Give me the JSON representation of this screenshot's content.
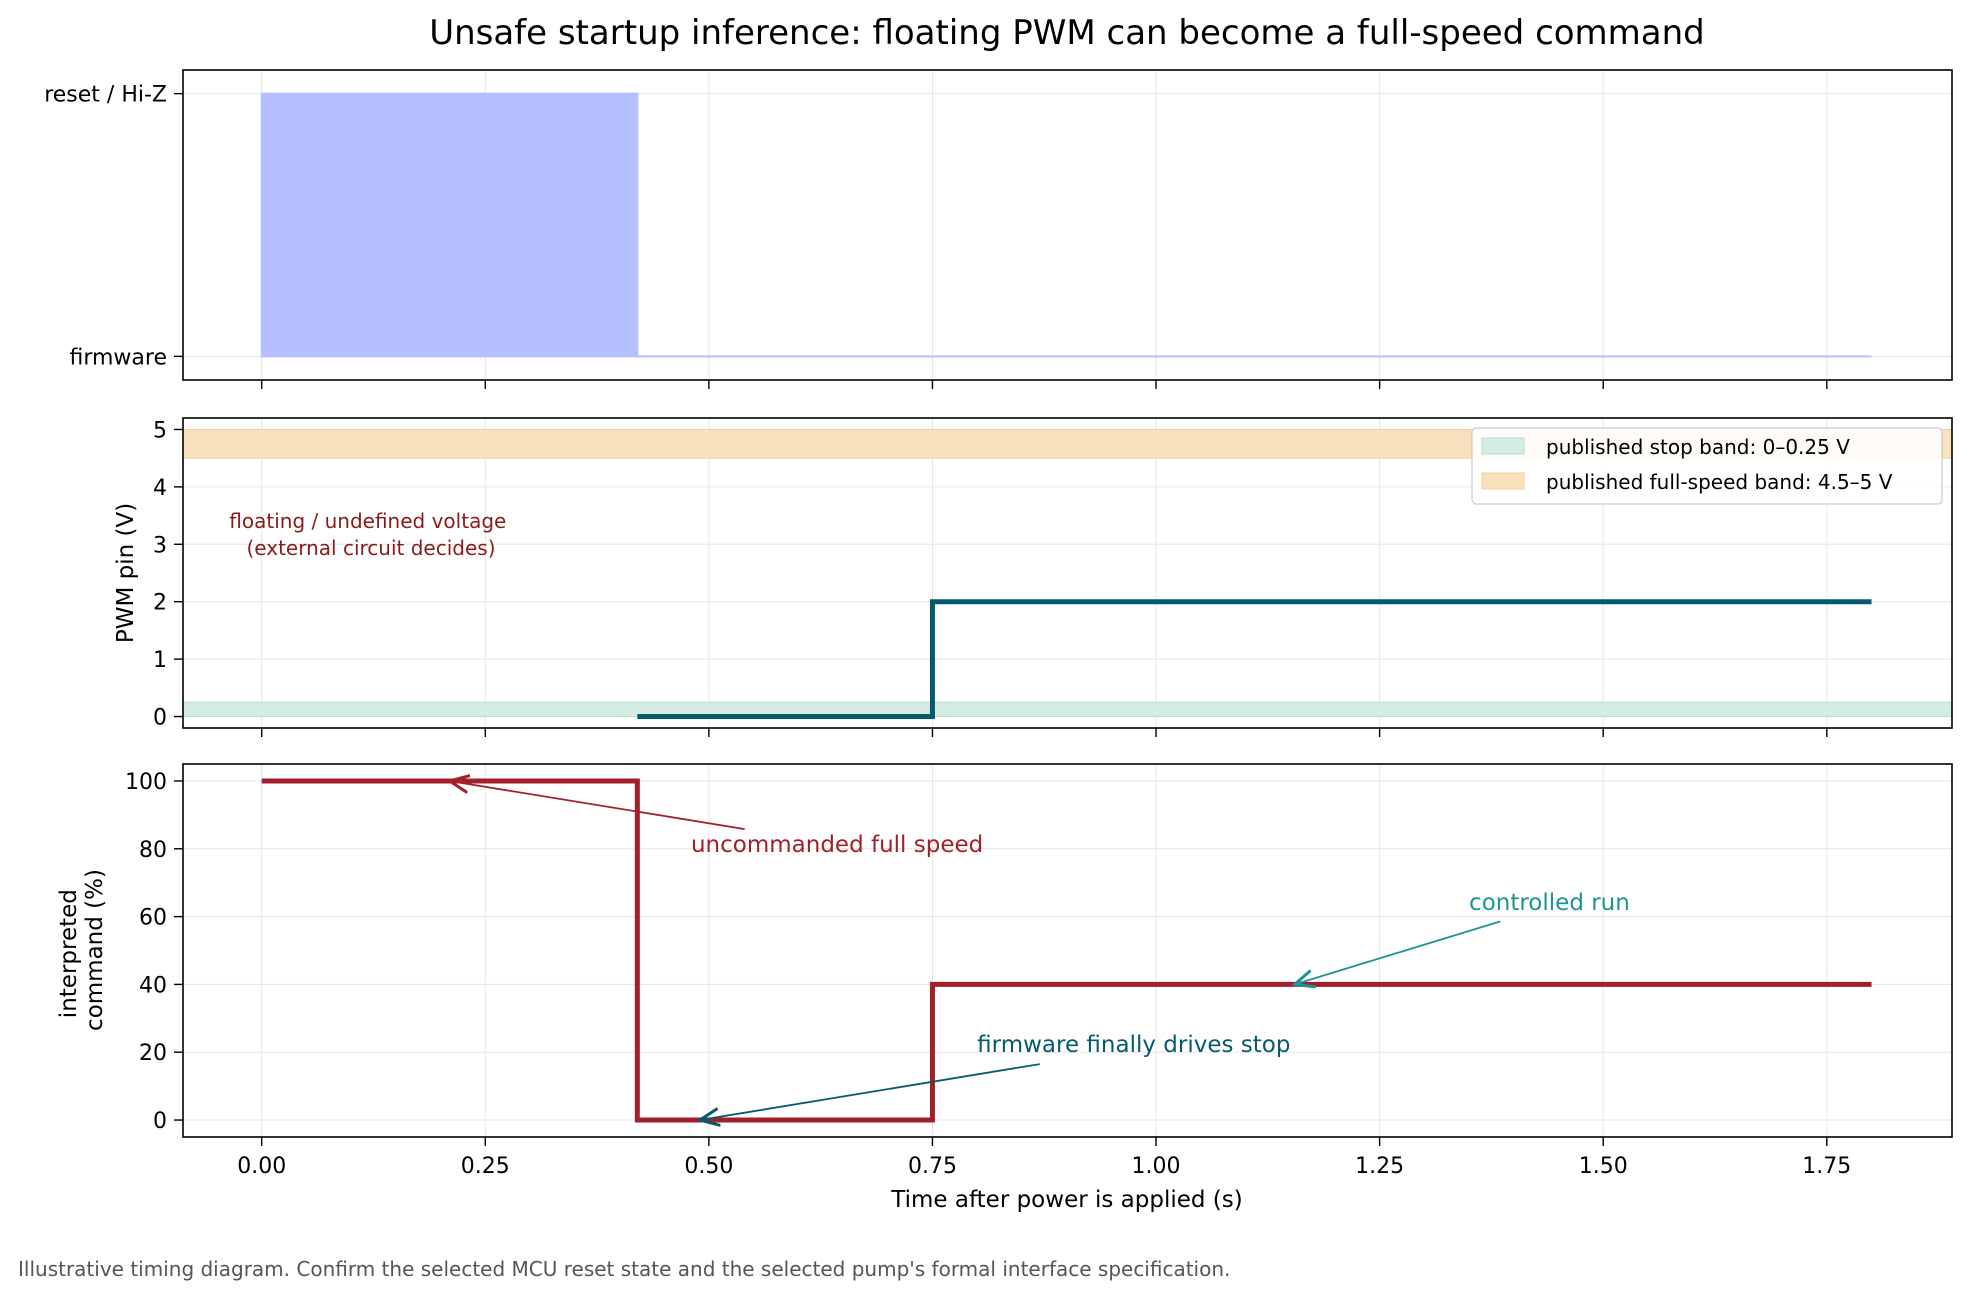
{
  "chart_data": {
    "type": "line",
    "title": "Unsafe startup inference: floating PWM can become a full-speed command",
    "xlabel": "Time after power is applied (s)",
    "xlim": [
      -0.088,
      1.89
    ],
    "x_ticks": [
      "0.00",
      "0.25",
      "0.50",
      "0.75",
      "1.00",
      "1.25",
      "1.50",
      "1.75"
    ],
    "x_tick_values": [
      0,
      0.25,
      0.5,
      0.75,
      1.0,
      1.25,
      1.5,
      1.75
    ],
    "grid": true,
    "footnote": "Illustrative timing diagram. Confirm the selected MCU reset state and the selected pump's formal interface specification.",
    "panels": [
      {
        "id": "mcu-state",
        "ylabel": "",
        "ylim": [
          -0.09,
          1.09
        ],
        "y_ticks": [
          "firmware",
          "reset / Hi-Z"
        ],
        "y_tick_values": [
          0,
          1
        ],
        "series": [
          {
            "style": "step-fill",
            "color": "#b4bfff",
            "x": [
              0,
              0.42,
              0.42,
              1.8
            ],
            "y": [
              1,
              1,
              0,
              0
            ]
          }
        ]
      },
      {
        "id": "pwm-pin",
        "ylabel": "PWM pin (V)",
        "ylim": [
          -0.2,
          5.2
        ],
        "y_ticks": [
          "0",
          "1",
          "2",
          "3",
          "4",
          "5"
        ],
        "y_tick_values": [
          0,
          1,
          2,
          3,
          4,
          5
        ],
        "bands": [
          {
            "label": "published stop band: 0–0.25 V",
            "y0": 0,
            "y1": 0.25,
            "color": "#d4ece3",
            "edge": "#b7ddcc"
          },
          {
            "label": "published full-speed band: 4.5–5 V",
            "y0": 4.5,
            "y1": 5,
            "color": "#f9e1bd",
            "edge": "#f3cf98"
          }
        ],
        "series": [
          {
            "style": "step",
            "color": "#065a6e",
            "x": [
              0.42,
              0.75,
              0.75,
              1.8
            ],
            "y": [
              0,
              0,
              2,
              2
            ]
          }
        ],
        "annotations": [
          {
            "text": [
              "floating / undefined voltage",
              "(external circuit decides)"
            ],
            "x": 0.12,
            "y": 3.05,
            "color": "#8b1a1a"
          }
        ],
        "legend_position": "top-right"
      },
      {
        "id": "command",
        "ylabel": "interpreted command (%)",
        "ylabel_lines": [
          "interpreted",
          "command (%)"
        ],
        "ylim": [
          -5,
          105
        ],
        "y_ticks": [
          "0",
          "20",
          "40",
          "60",
          "80",
          "100"
        ],
        "y_tick_values": [
          0,
          20,
          40,
          60,
          80,
          100
        ],
        "series": [
          {
            "style": "step",
            "color": "#a2202a",
            "x": [
              0,
              0.42,
              0.42,
              0.75,
              0.75,
              1.8
            ],
            "y": [
              100,
              100,
              0,
              0,
              40,
              40
            ]
          }
        ],
        "annotations": [
          {
            "text": "uncommanded full speed",
            "color": "#a2202a",
            "text_x": 0.48,
            "text_y": 79,
            "arrow_from": [
              0.54,
              85.8
            ],
            "arrow_to": [
              0.21,
              100
            ]
          },
          {
            "text": "controlled run",
            "color": "#1a9494",
            "text_x": 1.35,
            "text_y": 62,
            "arrow_from": [
              1.385,
              58.6
            ],
            "arrow_to": [
              1.155,
              40
            ]
          },
          {
            "text": "firmware finally drives stop",
            "color": "#065a6e",
            "text_x": 0.8,
            "text_y": 20,
            "arrow_from": [
              0.87,
              16.5
            ],
            "arrow_to": [
              0.49,
              0
            ]
          }
        ]
      }
    ]
  }
}
